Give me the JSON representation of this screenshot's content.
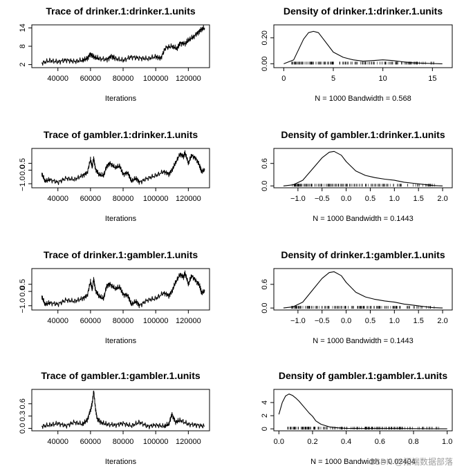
{
  "watermark": "CSDN @拓端数据部落",
  "chart_data": [
    {
      "type": "line",
      "kind": "trace",
      "title": "Trace of drinker.1:drinker.1.units",
      "xlabel": "Iterations",
      "ylabel": "",
      "xlim": [
        24000,
        133000
      ],
      "ylim": [
        1.0,
        15.0
      ],
      "xticks": [
        40000,
        60000,
        80000,
        100000,
        120000
      ],
      "xtick_labels": [
        "40000",
        "60000",
        "80000",
        "100000",
        "120000"
      ],
      "yticks": [
        2,
        8,
        14
      ],
      "ytick_labels": [
        "2",
        "8",
        "14"
      ],
      "x": [
        30000,
        35000,
        40000,
        45000,
        50000,
        55000,
        58000,
        60000,
        62000,
        65000,
        70000,
        73000,
        75000,
        80000,
        85000,
        90000,
        95000,
        100000,
        103000,
        106000,
        110000,
        113000,
        115000,
        118000,
        120000,
        123000,
        126000,
        128000,
        130000
      ],
      "y": [
        2.5,
        3.3,
        2.9,
        3.5,
        3.0,
        3.4,
        4.0,
        5.5,
        4.5,
        4.0,
        3.6,
        4.8,
        4.0,
        3.4,
        4.5,
        4.1,
        3.9,
        4.6,
        4.0,
        7.5,
        8.0,
        7.2,
        9.0,
        8.8,
        10.0,
        11.0,
        12.5,
        13.5,
        14.0
      ]
    },
    {
      "type": "line",
      "kind": "density",
      "title": "Density of drinker.1:drinker.1.units",
      "xlabel": "N = 1000   Bandwidth = 0.568",
      "ylabel": "",
      "xlim": [
        -1.0,
        17.0
      ],
      "ylim": [
        -0.03,
        0.3
      ],
      "xticks": [
        0,
        5,
        10,
        15
      ],
      "xtick_labels": [
        "0",
        "5",
        "10",
        "15"
      ],
      "yticks": [
        0.0,
        0.2
      ],
      "ytick_labels": [
        "0.00",
        "0.20"
      ],
      "x": [
        0,
        1,
        2,
        2.5,
        3,
        3.5,
        4,
        5,
        6,
        7,
        8,
        9,
        10,
        11,
        12,
        13,
        14,
        15,
        16
      ],
      "y": [
        0.0,
        0.03,
        0.19,
        0.24,
        0.25,
        0.24,
        0.19,
        0.09,
        0.05,
        0.03,
        0.02,
        0.025,
        0.03,
        0.025,
        0.015,
        0.008,
        0.004,
        0.002,
        0.0
      ]
    },
    {
      "type": "line",
      "kind": "trace",
      "title": "Trace of gambler.1:drinker.1.units",
      "xlabel": "Iterations",
      "ylabel": "",
      "xlim": [
        24000,
        133000
      ],
      "ylim": [
        -1.3,
        1.6
      ],
      "xticks": [
        40000,
        60000,
        80000,
        100000,
        120000
      ],
      "xtick_labels": [
        "40000",
        "60000",
        "80000",
        "100000",
        "120000"
      ],
      "yticks": [
        -1.0,
        0.0,
        0.5
      ],
      "ytick_labels": [
        "−1.0",
        "0.0",
        "0.5"
      ],
      "x": [
        30000,
        32000,
        35000,
        40000,
        45000,
        50000,
        55000,
        58000,
        60000,
        61000,
        62000,
        63000,
        65000,
        68000,
        70000,
        72000,
        75000,
        78000,
        80000,
        83000,
        85000,
        88000,
        90000,
        95000,
        100000,
        105000,
        108000,
        110000,
        112000,
        115000,
        117000,
        118000,
        120000,
        122000,
        125000,
        127000,
        128000,
        130000
      ],
      "y": [
        -0.2,
        -0.8,
        -0.7,
        -0.9,
        -0.6,
        -0.7,
        -0.4,
        -0.2,
        0.8,
        0.2,
        0.9,
        0.1,
        -0.3,
        -0.4,
        0.3,
        0.5,
        0.2,
        0.3,
        -0.3,
        -0.2,
        -0.8,
        -0.6,
        -0.9,
        -0.6,
        -0.4,
        -0.1,
        -0.3,
        0.0,
        0.5,
        1.2,
        1.0,
        1.3,
        0.5,
        1.1,
        0.8,
        0.3,
        -0.1,
        0.0
      ]
    },
    {
      "type": "line",
      "kind": "density",
      "title": "Density of gambler.1:drinker.1.units",
      "xlabel": "N = 1000   Bandwidth = 0.1443",
      "ylabel": "",
      "xlim": [
        -1.5,
        2.2
      ],
      "ylim": [
        -0.05,
        1.0
      ],
      "xticks": [
        -1.0,
        -0.5,
        0.0,
        0.5,
        1.0,
        1.5,
        2.0
      ],
      "xtick_labels": [
        "−1.0",
        "−0.5",
        "0.0",
        "0.5",
        "1.0",
        "1.5",
        "2.0"
      ],
      "yticks": [
        0.0,
        0.6
      ],
      "ytick_labels": [
        "0.0",
        "0.6"
      ],
      "x": [
        -1.3,
        -1.1,
        -0.9,
        -0.7,
        -0.5,
        -0.35,
        -0.25,
        -0.1,
        0.0,
        0.2,
        0.4,
        0.6,
        0.8,
        1.0,
        1.2,
        1.4,
        1.6,
        1.8,
        2.0
      ],
      "y": [
        0.0,
        0.03,
        0.15,
        0.45,
        0.75,
        0.9,
        0.92,
        0.82,
        0.65,
        0.4,
        0.28,
        0.22,
        0.18,
        0.15,
        0.1,
        0.07,
        0.04,
        0.01,
        0.0
      ]
    },
    {
      "type": "line",
      "kind": "trace",
      "title": "Trace of drinker.1:gambler.1.units",
      "xlabel": "Iterations",
      "ylabel": "",
      "xlim": [
        24000,
        133000
      ],
      "ylim": [
        -1.3,
        1.6
      ],
      "xticks": [
        40000,
        60000,
        80000,
        100000,
        120000
      ],
      "xtick_labels": [
        "40000",
        "60000",
        "80000",
        "100000",
        "120000"
      ],
      "yticks": [
        -1.0,
        0.0,
        0.5
      ],
      "ytick_labels": [
        "−1.0",
        "0.0",
        "0.5"
      ],
      "x": [
        30000,
        32000,
        35000,
        40000,
        45000,
        50000,
        55000,
        58000,
        60000,
        61000,
        62000,
        63000,
        65000,
        68000,
        70000,
        72000,
        75000,
        78000,
        80000,
        83000,
        85000,
        88000,
        90000,
        95000,
        100000,
        105000,
        108000,
        110000,
        112000,
        115000,
        117000,
        118000,
        120000,
        122000,
        125000,
        127000,
        128000,
        130000
      ],
      "y": [
        -0.3,
        -0.9,
        -0.8,
        -0.9,
        -0.6,
        -0.7,
        -0.5,
        -0.3,
        0.7,
        0.1,
        0.9,
        0.1,
        -0.3,
        -0.5,
        0.4,
        0.5,
        0.2,
        0.3,
        -0.2,
        -0.3,
        -0.9,
        -0.7,
        -1.0,
        -0.6,
        -0.5,
        -0.1,
        -0.3,
        0.0,
        0.6,
        1.2,
        1.0,
        1.3,
        0.5,
        1.1,
        0.7,
        0.4,
        -0.1,
        0.0
      ]
    },
    {
      "type": "line",
      "kind": "density",
      "title": "Density of drinker.1:gambler.1.units",
      "xlabel": "N = 1000   Bandwidth = 0.1443",
      "ylabel": "",
      "xlim": [
        -1.5,
        2.2
      ],
      "ylim": [
        -0.05,
        1.0
      ],
      "xticks": [
        -1.0,
        -0.5,
        0.0,
        0.5,
        1.0,
        1.5,
        2.0
      ],
      "xtick_labels": [
        "−1.0",
        "−0.5",
        "0.0",
        "0.5",
        "1.0",
        "1.5",
        "2.0"
      ],
      "yticks": [
        0.0,
        0.6
      ],
      "ytick_labels": [
        "0.0",
        "0.6"
      ],
      "x": [
        -1.3,
        -1.1,
        -0.9,
        -0.7,
        -0.5,
        -0.35,
        -0.25,
        -0.1,
        0.0,
        0.2,
        0.4,
        0.6,
        0.8,
        1.0,
        1.2,
        1.4,
        1.6,
        1.8,
        2.0
      ],
      "y": [
        0.0,
        0.03,
        0.15,
        0.45,
        0.75,
        0.9,
        0.92,
        0.82,
        0.65,
        0.4,
        0.28,
        0.22,
        0.18,
        0.15,
        0.1,
        0.07,
        0.04,
        0.01,
        0.0
      ]
    },
    {
      "type": "line",
      "kind": "trace",
      "title": "Trace of gambler.1:gambler.1.units",
      "xlabel": "Iterations",
      "ylabel": "",
      "xlim": [
        24000,
        133000
      ],
      "ylim": [
        -0.06,
        0.95
      ],
      "xticks": [
        40000,
        60000,
        80000,
        100000,
        120000
      ],
      "xtick_labels": [
        "40000",
        "60000",
        "80000",
        "100000",
        "120000"
      ],
      "yticks": [
        0.0,
        0.3,
        0.6
      ],
      "ytick_labels": [
        "0.0",
        "0.3",
        "0.6"
      ],
      "x": [
        30000,
        35000,
        40000,
        45000,
        50000,
        55000,
        58000,
        60000,
        61000,
        62000,
        63000,
        64000,
        66000,
        70000,
        75000,
        80000,
        85000,
        90000,
        95000,
        100000,
        105000,
        108000,
        110000,
        112000,
        115000,
        120000,
        125000,
        130000
      ],
      "y": [
        0.05,
        0.08,
        0.12,
        0.06,
        0.15,
        0.1,
        0.2,
        0.45,
        0.6,
        0.9,
        0.5,
        0.25,
        0.15,
        0.1,
        0.08,
        0.12,
        0.06,
        0.15,
        0.05,
        0.08,
        0.05,
        0.1,
        0.35,
        0.15,
        0.2,
        0.1,
        0.08,
        0.05
      ]
    },
    {
      "type": "line",
      "kind": "density",
      "title": "Density of gambler.1:gambler.1.units",
      "xlabel": "N = 1000   Bandwidth = 0.02404",
      "ylabel": "",
      "xlim": [
        -0.03,
        1.03
      ],
      "ylim": [
        -0.3,
        6.0
      ],
      "xticks": [
        0.0,
        0.2,
        0.4,
        0.6,
        0.8,
        1.0
      ],
      "xtick_labels": [
        "0.0",
        "0.2",
        "0.4",
        "0.6",
        "0.8",
        "1.0"
      ],
      "yticks": [
        0,
        2,
        4
      ],
      "ytick_labels": [
        "0",
        "2",
        "4"
      ],
      "x": [
        0.0,
        0.02,
        0.04,
        0.06,
        0.08,
        0.1,
        0.12,
        0.15,
        0.18,
        0.2,
        0.22,
        0.25,
        0.3,
        0.35,
        0.4,
        0.5,
        0.6,
        0.7,
        0.8,
        0.9,
        1.0
      ],
      "y": [
        2.2,
        4.0,
        5.0,
        5.3,
        5.1,
        4.7,
        4.2,
        3.3,
        2.4,
        1.9,
        1.2,
        0.7,
        0.3,
        0.15,
        0.08,
        0.05,
        0.05,
        0.05,
        0.04,
        0.02,
        0.0
      ]
    }
  ]
}
